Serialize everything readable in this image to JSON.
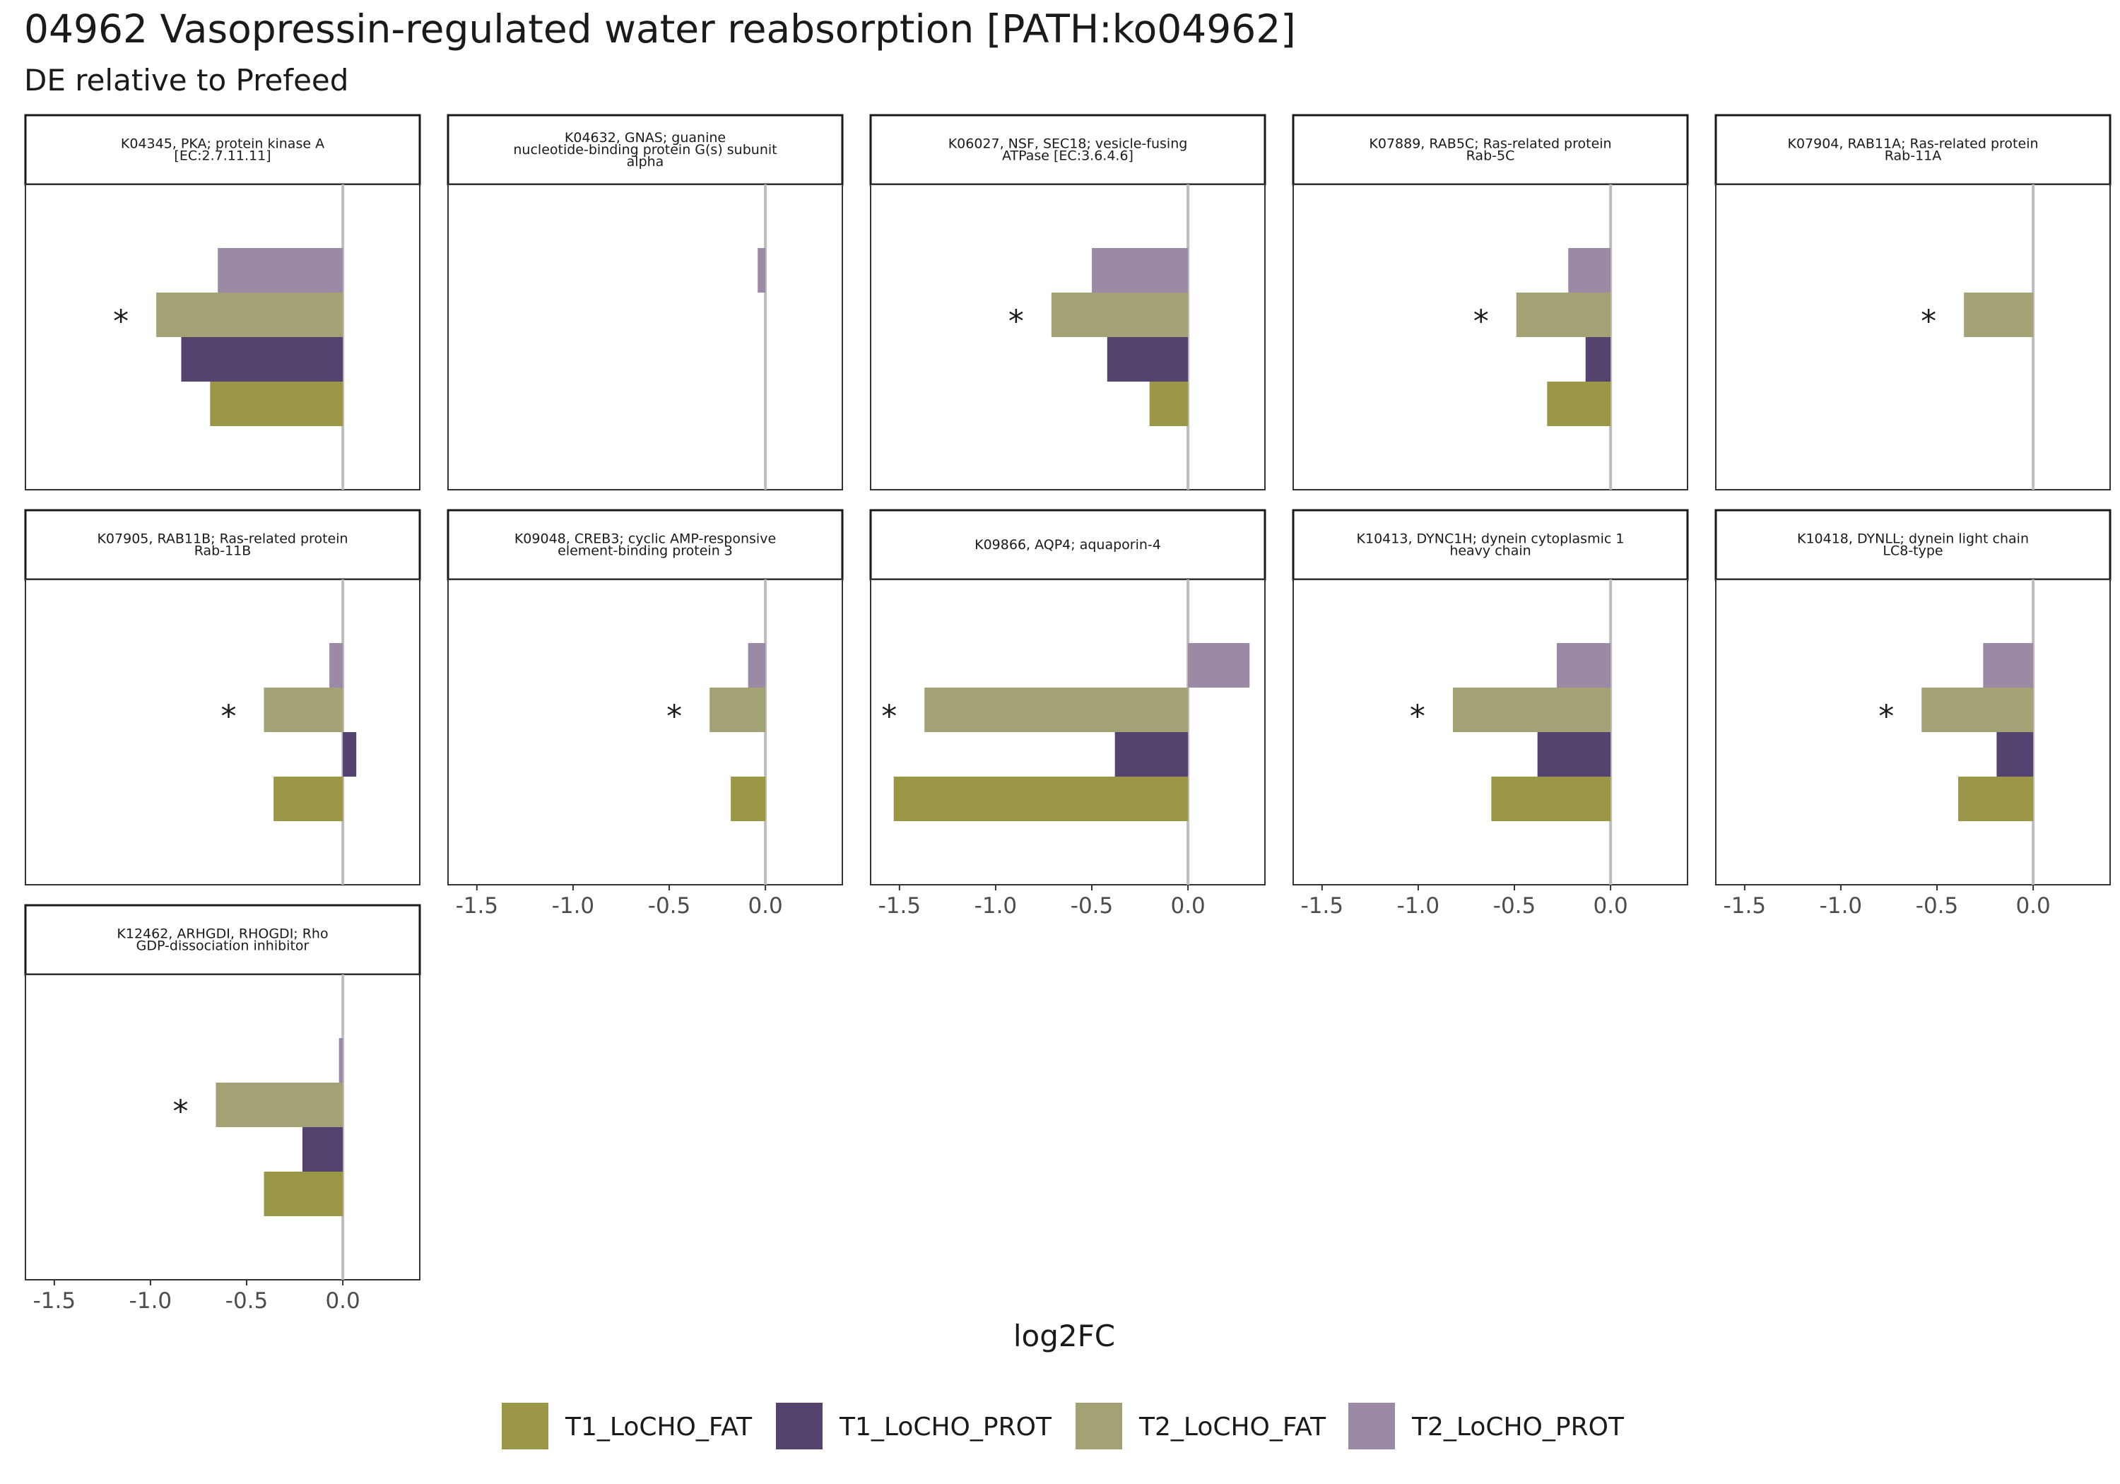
{
  "chart_data": {
    "type": "bar",
    "orientation": "horizontal",
    "faceted": true,
    "title": "04962 Vasopressin-regulated water reabsorption [PATH:ko04962]",
    "subtitle": "DE relative to Prefeed",
    "xlabel": "log2FC",
    "xlim": [
      -1.65,
      0.4
    ],
    "xticks": [
      -1.5,
      -1.0,
      -0.5,
      0.0
    ],
    "xtick_labels": [
      "-1.5",
      "-1.0",
      "-0.5",
      "0.0"
    ],
    "grid": false,
    "legend_position": "bottom",
    "series": [
      {
        "name": "T1_LoCHO_FAT",
        "color": "#9c9647"
      },
      {
        "name": "T1_LoCHO_PROT",
        "color": "#54436e"
      },
      {
        "name": "T2_LoCHO_FAT",
        "color": "#a3a275"
      },
      {
        "name": "T2_LoCHO_PROT",
        "color": "#9c89a6"
      }
    ],
    "panels": [
      {
        "label": [
          "K04345, PKA; protein kinase A",
          "[EC:2.7.11.11]"
        ],
        "values": {
          "T1_LoCHO_FAT": -0.69,
          "T1_LoCHO_PROT": -0.84,
          "T2_LoCHO_FAT": -0.97,
          "T2_LoCHO_PROT": -0.65
        },
        "significant": [
          "T2_LoCHO_FAT"
        ]
      },
      {
        "label": [
          "K04632, GNAS; guanine",
          "nucleotide-binding protein G(s) subunit",
          "alpha"
        ],
        "values": {
          "T1_LoCHO_FAT": null,
          "T1_LoCHO_PROT": null,
          "T2_LoCHO_FAT": null,
          "T2_LoCHO_PROT": -0.04
        },
        "significant": []
      },
      {
        "label": [
          "K06027, NSF, SEC18; vesicle-fusing",
          "ATPase [EC:3.6.4.6]"
        ],
        "values": {
          "T1_LoCHO_FAT": -0.2,
          "T1_LoCHO_PROT": -0.42,
          "T2_LoCHO_FAT": -0.71,
          "T2_LoCHO_PROT": -0.5
        },
        "significant": [
          "T2_LoCHO_FAT"
        ]
      },
      {
        "label": [
          "K07889, RAB5C; Ras-related protein",
          "Rab-5C"
        ],
        "values": {
          "T1_LoCHO_FAT": -0.33,
          "T1_LoCHO_PROT": -0.13,
          "T2_LoCHO_FAT": -0.49,
          "T2_LoCHO_PROT": -0.22
        },
        "significant": [
          "T2_LoCHO_FAT"
        ]
      },
      {
        "label": [
          "K07904, RAB11A; Ras-related protein",
          "Rab-11A"
        ],
        "values": {
          "T1_LoCHO_FAT": null,
          "T1_LoCHO_PROT": null,
          "T2_LoCHO_FAT": -0.36,
          "T2_LoCHO_PROT": null
        },
        "significant": [
          "T2_LoCHO_FAT"
        ]
      },
      {
        "label": [
          "K07905, RAB11B; Ras-related protein",
          "Rab-11B"
        ],
        "values": {
          "T1_LoCHO_FAT": -0.36,
          "T1_LoCHO_PROT": 0.07,
          "T2_LoCHO_FAT": -0.41,
          "T2_LoCHO_PROT": -0.07
        },
        "significant": [
          "T2_LoCHO_FAT"
        ]
      },
      {
        "label": [
          "K09048, CREB3; cyclic AMP-responsive",
          "element-binding protein 3"
        ],
        "values": {
          "T1_LoCHO_FAT": -0.18,
          "T1_LoCHO_PROT": null,
          "T2_LoCHO_FAT": -0.29,
          "T2_LoCHO_PROT": -0.09
        },
        "significant": [
          "T2_LoCHO_FAT"
        ]
      },
      {
        "label": [
          "K09866, AQP4; aquaporin-4"
        ],
        "values": {
          "T1_LoCHO_FAT": -1.53,
          "T1_LoCHO_PROT": -0.38,
          "T2_LoCHO_FAT": -1.37,
          "T2_LoCHO_PROT": 0.32
        },
        "significant": [
          "T2_LoCHO_FAT"
        ]
      },
      {
        "label": [
          "K10413, DYNC1H; dynein cytoplasmic 1",
          "heavy chain"
        ],
        "values": {
          "T1_LoCHO_FAT": -0.62,
          "T1_LoCHO_PROT": -0.38,
          "T2_LoCHO_FAT": -0.82,
          "T2_LoCHO_PROT": -0.28
        },
        "significant": [
          "T2_LoCHO_FAT"
        ]
      },
      {
        "label": [
          "K10418, DYNLL; dynein light chain",
          "LC8-type"
        ],
        "values": {
          "T1_LoCHO_FAT": -0.39,
          "T1_LoCHO_PROT": -0.19,
          "T2_LoCHO_FAT": -0.58,
          "T2_LoCHO_PROT": -0.26
        },
        "significant": [
          "T2_LoCHO_FAT"
        ]
      },
      {
        "label": [
          "K12462, ARHGDI, RHOGDI; Rho",
          "GDP-dissociation inhibitor"
        ],
        "values": {
          "T1_LoCHO_FAT": -0.41,
          "T1_LoCHO_PROT": -0.21,
          "T2_LoCHO_FAT": -0.66,
          "T2_LoCHO_PROT": -0.02
        },
        "significant": [
          "T2_LoCHO_FAT"
        ]
      }
    ],
    "significance_marker": "*"
  }
}
